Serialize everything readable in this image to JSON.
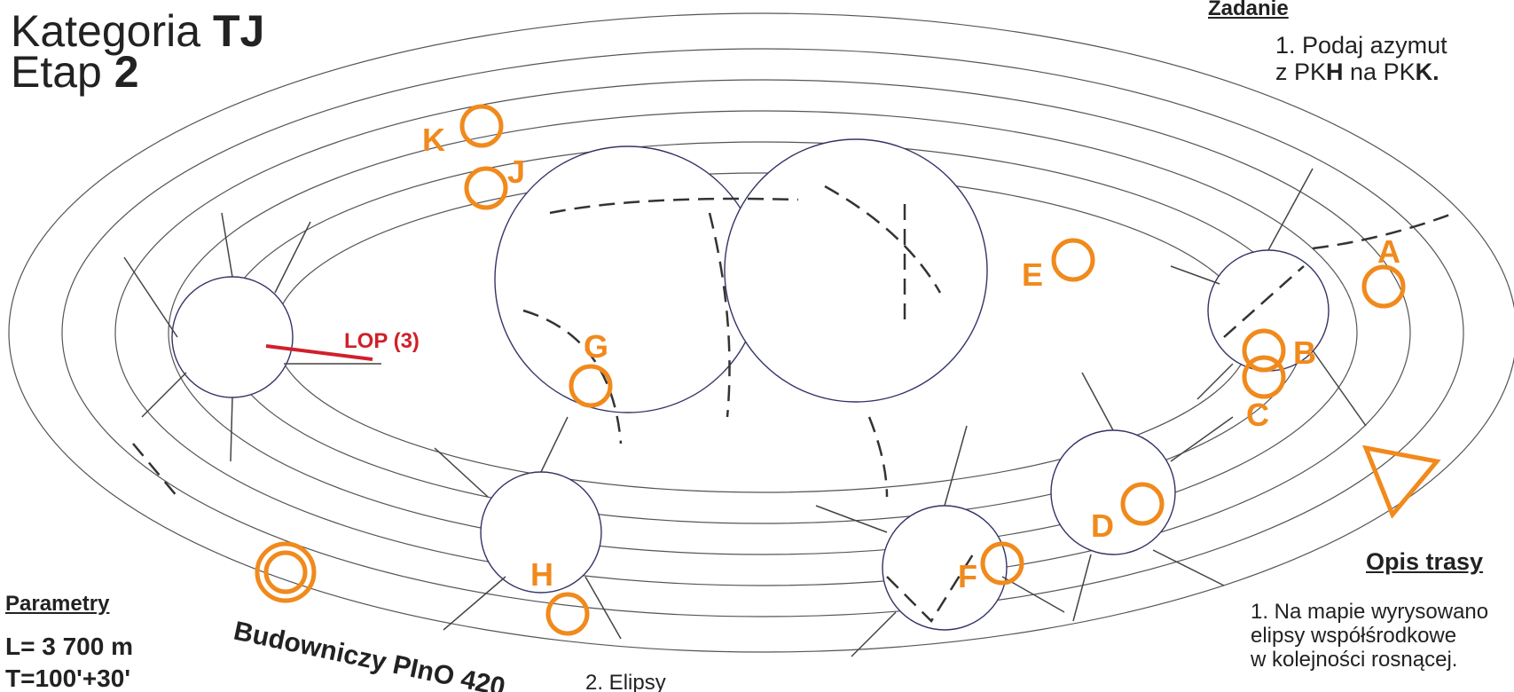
{
  "header": {
    "title_prefix": "Kategoria",
    "title_category": "TJ",
    "stage_prefix": "Etap",
    "stage_number": "2"
  },
  "task": {
    "heading": "Zadanie",
    "line1": "1. Podaj azymut",
    "line2_parts": [
      "z PK",
      "H",
      " na PK",
      "K."
    ]
  },
  "parameters": {
    "heading": "Parametry",
    "length": "L= 3 700 m",
    "time": "T=100'+30'"
  },
  "route": {
    "heading": "Opis trasy",
    "lines": [
      "1. Na mapie wyrysowano",
      "elipsy współśrodkowe",
      "w kolejności rosnącej."
    ],
    "next_line": "2. Elipsy"
  },
  "builder": "Budowniczy PInO 420",
  "map": {
    "lop_label": "LOP (3)",
    "controls": [
      "A",
      "B",
      "C",
      "D",
      "E",
      "F",
      "G",
      "H",
      "J",
      "K"
    ]
  }
}
